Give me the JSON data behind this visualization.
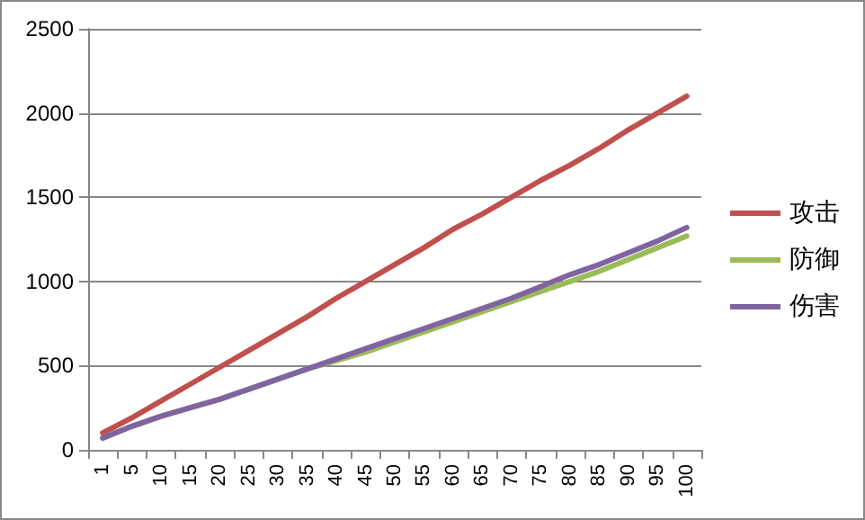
{
  "chart_data": {
    "type": "line",
    "categories": [
      "1",
      "5",
      "10",
      "15",
      "20",
      "25",
      "30",
      "35",
      "40",
      "45",
      "50",
      "55",
      "60",
      "65",
      "70",
      "75",
      "80",
      "85",
      "90",
      "95",
      "100"
    ],
    "series": [
      {
        "name": "攻击",
        "color": "#c0504d",
        "values": [
          100,
          190,
          290,
          390,
          490,
          590,
          690,
          790,
          900,
          1000,
          1100,
          1200,
          1310,
          1400,
          1500,
          1600,
          1690,
          1790,
          1900,
          2000,
          2100
        ]
      },
      {
        "name": "防御",
        "color": "#9bbb59",
        "values": [
          70,
          140,
          200,
          250,
          300,
          360,
          420,
          480,
          530,
          580,
          640,
          700,
          760,
          820,
          880,
          940,
          1000,
          1060,
          1130,
          1200,
          1270
        ]
      },
      {
        "name": "伤害",
        "color": "#8064a2",
        "values": [
          70,
          140,
          200,
          250,
          300,
          360,
          420,
          480,
          540,
          600,
          660,
          720,
          780,
          840,
          900,
          970,
          1040,
          1100,
          1170,
          1240,
          1320
        ]
      }
    ],
    "ylim": [
      0,
      2500
    ],
    "yticks": [
      0,
      500,
      1000,
      1500,
      2000,
      2500
    ],
    "grid": "y",
    "legend": "right",
    "marker": "none",
    "line_style": "solid"
  }
}
